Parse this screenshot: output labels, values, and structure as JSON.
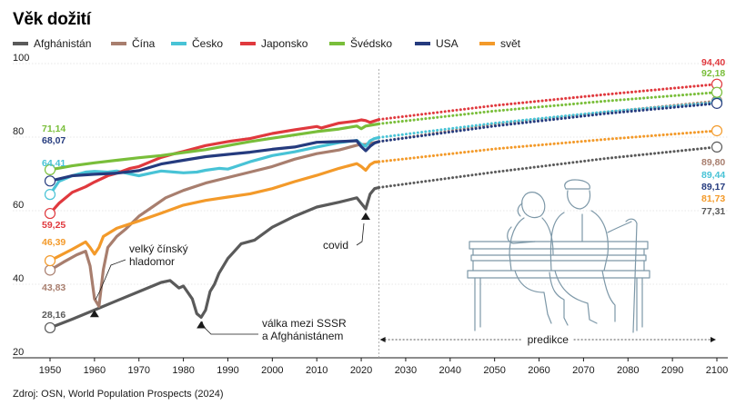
{
  "title": "Věk dožití",
  "source": "Zdroj: OSN, World Population Prospects (2024)",
  "chart_data": {
    "type": "line",
    "title": "Věk dožití",
    "xlabel": "",
    "ylabel": "",
    "xlim": [
      1950,
      2100
    ],
    "ylim": [
      20,
      100
    ],
    "x_ticks": [
      "1950",
      "1960",
      "1970",
      "1980",
      "1990",
      "2000",
      "2010",
      "2020",
      "2030",
      "2040",
      "2050",
      "2060",
      "2070",
      "2080",
      "2090",
      "2100"
    ],
    "y_ticks": [
      "20",
      "40",
      "60",
      "80",
      "100"
    ],
    "grid": "horizontal",
    "legend_position": "top",
    "projection_start": 2024,
    "projection_label": "predikce",
    "series": [
      {
        "name": "Afghánistán",
        "color": "#5a5a5a",
        "start_label": "28,16",
        "end_label": "77,31",
        "values": [
          [
            1950,
            28.16
          ],
          [
            1955,
            30.5
          ],
          [
            1960,
            33
          ],
          [
            1965,
            35.5
          ],
          [
            1970,
            38
          ],
          [
            1975,
            40.5
          ],
          [
            1977,
            41
          ],
          [
            1979,
            39
          ],
          [
            1980,
            39.5
          ],
          [
            1982,
            36
          ],
          [
            1983,
            32
          ],
          [
            1984,
            31
          ],
          [
            1985,
            33
          ],
          [
            1986,
            38
          ],
          [
            1987,
            40
          ],
          [
            1988,
            43
          ],
          [
            1990,
            47
          ],
          [
            1993,
            51
          ],
          [
            1996,
            52
          ],
          [
            2000,
            55.5
          ],
          [
            2005,
            58.5
          ],
          [
            2010,
            61
          ],
          [
            2015,
            62.3
          ],
          [
            2019,
            63.5
          ],
          [
            2020,
            62
          ],
          [
            2021,
            60.5
          ],
          [
            2022,
            64.5
          ],
          [
            2023,
            66
          ],
          [
            2024,
            66.3
          ]
        ],
        "projection": [
          [
            2024,
            66.3
          ],
          [
            2050,
            70.5
          ],
          [
            2075,
            74.2
          ],
          [
            2100,
            77.31
          ]
        ]
      },
      {
        "name": "Čína",
        "color": "#a87e6e",
        "start_label": "43,83",
        "end_label": "89,80",
        "values": [
          [
            1950,
            43.83
          ],
          [
            1953,
            46
          ],
          [
            1956,
            48
          ],
          [
            1958,
            49
          ],
          [
            1959,
            45
          ],
          [
            1960,
            36
          ],
          [
            1961,
            34
          ],
          [
            1962,
            44
          ],
          [
            1963,
            50
          ],
          [
            1965,
            53
          ],
          [
            1967,
            55
          ],
          [
            1970,
            58.5
          ],
          [
            1973,
            61
          ],
          [
            1976,
            63.5
          ],
          [
            1980,
            65.5
          ],
          [
            1985,
            67.5
          ],
          [
            1990,
            69
          ],
          [
            1995,
            70.5
          ],
          [
            2000,
            72
          ],
          [
            2005,
            74
          ],
          [
            2010,
            75.5
          ],
          [
            2015,
            76.5
          ],
          [
            2019,
            77.8
          ],
          [
            2020,
            78
          ],
          [
            2021,
            78
          ],
          [
            2022,
            78.3
          ],
          [
            2023,
            78.5
          ],
          [
            2024,
            78.8
          ]
        ],
        "projection": [
          [
            2024,
            78.8
          ],
          [
            2050,
            83.5
          ],
          [
            2075,
            86.8
          ],
          [
            2100,
            89.8
          ]
        ]
      },
      {
        "name": "Česko",
        "color": "#48c3d6",
        "start_label": "64,41",
        "end_label": "89,44",
        "values": [
          [
            1950,
            64.41
          ],
          [
            1952,
            68
          ],
          [
            1955,
            69.5
          ],
          [
            1958,
            70.5
          ],
          [
            1960,
            70.7
          ],
          [
            1963,
            70.5
          ],
          [
            1965,
            70.8
          ],
          [
            1968,
            70
          ],
          [
            1970,
            69.5
          ],
          [
            1973,
            70.3
          ],
          [
            1975,
            70.8
          ],
          [
            1978,
            70.5
          ],
          [
            1980,
            70.3
          ],
          [
            1983,
            70.5
          ],
          [
            1985,
            71
          ],
          [
            1988,
            71.5
          ],
          [
            1990,
            71.3
          ],
          [
            1993,
            72.5
          ],
          [
            1995,
            73.3
          ],
          [
            1998,
            74.3
          ],
          [
            2000,
            75
          ],
          [
            2005,
            76
          ],
          [
            2010,
            77.3
          ],
          [
            2015,
            78.5
          ],
          [
            2019,
            79.1
          ],
          [
            2020,
            78.1
          ],
          [
            2021,
            77.5
          ],
          [
            2022,
            79
          ],
          [
            2023,
            79.6
          ],
          [
            2024,
            79.9
          ]
        ],
        "projection": [
          [
            2024,
            79.9
          ],
          [
            2050,
            83.8
          ],
          [
            2075,
            86.9
          ],
          [
            2100,
            89.44
          ]
        ]
      },
      {
        "name": "Japonsko",
        "color": "#e0393e",
        "start_label": "59,25",
        "end_label": "94,40",
        "values": [
          [
            1950,
            59.25
          ],
          [
            1952,
            62
          ],
          [
            1955,
            65
          ],
          [
            1958,
            66.5
          ],
          [
            1960,
            67.8
          ],
          [
            1963,
            69.5
          ],
          [
            1965,
            70.2
          ],
          [
            1968,
            71.5
          ],
          [
            1970,
            72
          ],
          [
            1973,
            73.5
          ],
          [
            1975,
            74.5
          ],
          [
            1978,
            75.5
          ],
          [
            1980,
            76.1
          ],
          [
            1985,
            77.7
          ],
          [
            1990,
            78.8
          ],
          [
            1995,
            79.6
          ],
          [
            2000,
            81
          ],
          [
            2005,
            82
          ],
          [
            2010,
            82.9
          ],
          [
            2011,
            82.5
          ],
          [
            2015,
            83.8
          ],
          [
            2019,
            84.4
          ],
          [
            2020,
            84.7
          ],
          [
            2021,
            84.5
          ],
          [
            2022,
            84
          ],
          [
            2023,
            84.4
          ],
          [
            2024,
            84.8
          ]
        ],
        "projection": [
          [
            2024,
            84.8
          ],
          [
            2050,
            88.6
          ],
          [
            2075,
            91.6
          ],
          [
            2100,
            94.4
          ]
        ]
      },
      {
        "name": "Švédsko",
        "color": "#79be3a",
        "start_label": "71,14",
        "end_label": "92,18",
        "values": [
          [
            1950,
            71.14
          ],
          [
            1955,
            72.2
          ],
          [
            1960,
            73
          ],
          [
            1965,
            73.7
          ],
          [
            1970,
            74.4
          ],
          [
            1975,
            75
          ],
          [
            1980,
            75.8
          ],
          [
            1985,
            76.6
          ],
          [
            1990,
            77.7
          ],
          [
            1995,
            78.8
          ],
          [
            2000,
            79.7
          ],
          [
            2005,
            80.6
          ],
          [
            2010,
            81.5
          ],
          [
            2015,
            82.2
          ],
          [
            2019,
            83
          ],
          [
            2020,
            82.3
          ],
          [
            2021,
            83
          ],
          [
            2022,
            83.2
          ],
          [
            2023,
            83.4
          ],
          [
            2024,
            83.6
          ]
        ],
        "projection": [
          [
            2024,
            83.6
          ],
          [
            2050,
            87.1
          ],
          [
            2075,
            89.8
          ],
          [
            2100,
            92.18
          ]
        ]
      },
      {
        "name": "USA",
        "color": "#253b7e",
        "start_label": "68,07",
        "end_label": "89,17",
        "values": [
          [
            1950,
            68.07
          ],
          [
            1955,
            69.5
          ],
          [
            1960,
            69.9
          ],
          [
            1965,
            70.2
          ],
          [
            1970,
            70.9
          ],
          [
            1975,
            72.7
          ],
          [
            1980,
            73.7
          ],
          [
            1985,
            74.7
          ],
          [
            1990,
            75.3
          ],
          [
            1995,
            75.9
          ],
          [
            2000,
            76.7
          ],
          [
            2005,
            77.3
          ],
          [
            2010,
            78.6
          ],
          [
            2015,
            78.8
          ],
          [
            2019,
            79
          ],
          [
            2020,
            77.4
          ],
          [
            2021,
            76.3
          ],
          [
            2022,
            77.5
          ],
          [
            2023,
            78.4
          ],
          [
            2024,
            78.8
          ]
        ],
        "projection": [
          [
            2024,
            78.8
          ],
          [
            2050,
            83
          ],
          [
            2075,
            86.4
          ],
          [
            2100,
            89.17
          ]
        ]
      },
      {
        "name": "svět",
        "color": "#f39a2a",
        "start_label": "46,39",
        "end_label": "81,73",
        "values": [
          [
            1950,
            46.39
          ],
          [
            1955,
            49.5
          ],
          [
            1958,
            51.5
          ],
          [
            1959,
            50
          ],
          [
            1960,
            48.2
          ],
          [
            1961,
            50
          ],
          [
            1962,
            53
          ],
          [
            1965,
            55.2
          ],
          [
            1970,
            57.2
          ],
          [
            1975,
            59.3
          ],
          [
            1980,
            61.5
          ],
          [
            1985,
            62.8
          ],
          [
            1990,
            63.7
          ],
          [
            1995,
            64.6
          ],
          [
            2000,
            66
          ],
          [
            2005,
            67.9
          ],
          [
            2010,
            69.6
          ],
          [
            2015,
            71.5
          ],
          [
            2019,
            72.8
          ],
          [
            2020,
            72
          ],
          [
            2021,
            71
          ],
          [
            2022,
            72.5
          ],
          [
            2023,
            73.2
          ],
          [
            2024,
            73.3
          ]
        ],
        "projection": [
          [
            2024,
            73.3
          ],
          [
            2050,
            76.8
          ],
          [
            2075,
            79.4
          ],
          [
            2100,
            81.73
          ]
        ]
      }
    ],
    "annotations": [
      {
        "text_lines": [
          "velký čínský",
          "hladomor"
        ],
        "x": 1960,
        "y": 34
      },
      {
        "text_lines": [
          "válka mezi SSSR",
          "a Afghánistánem"
        ],
        "x": 1984,
        "y": 31
      },
      {
        "text_lines": [
          "covid"
        ],
        "x": 2021,
        "y": 60.5
      }
    ]
  }
}
